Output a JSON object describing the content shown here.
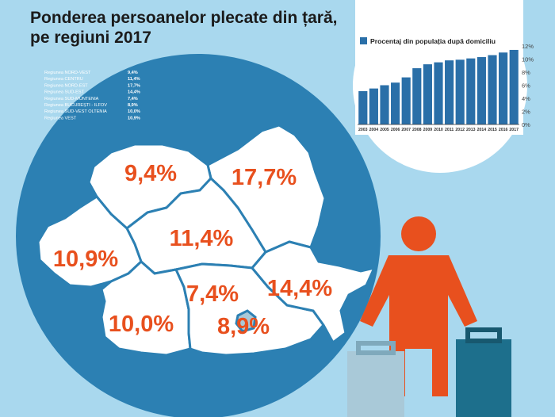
{
  "title_line1": "Ponderea persoanelor plecate din țară,",
  "title_line2": "pe regiuni 2017",
  "colors": {
    "background": "#a9d8ee",
    "circle": "#2c80b3",
    "map": "#ffffff",
    "value_text": "#e8501e",
    "bar": "#2a6fa8",
    "person": "#e8501e",
    "suitcase_light": "#a9c9d8",
    "suitcase_dark": "#1d6f8c"
  },
  "chart_data": [
    {
      "type": "table",
      "rows": [
        {
          "label": "Regiunea NORD-VEST",
          "value": "9,4%"
        },
        {
          "label": "Regiunea CENTRU",
          "value": "11,4%"
        },
        {
          "label": "Regiunea NORD-EST",
          "value": "17,7%"
        },
        {
          "label": "Regiunea SUD-EST",
          "value": "14,4%"
        },
        {
          "label": "Regiunea SUD-MUNTENIA",
          "value": "7,4%"
        },
        {
          "label": "Regiunea BUCUREȘTI - ILFOV",
          "value": "8,9%"
        },
        {
          "label": "Regiunea SUD-VEST OLTENIA",
          "value": "10,0%"
        },
        {
          "label": "Regiunea VEST",
          "value": "10,9%"
        }
      ]
    },
    {
      "type": "bar",
      "legend": "Procentaj din populația după domiciliu",
      "legend_position": "top",
      "categories": [
        "2003",
        "2004",
        "2005",
        "2006",
        "2007",
        "2008",
        "2009",
        "2010",
        "2011",
        "2012",
        "2013",
        "2014",
        "2015",
        "2016",
        "2017"
      ],
      "values": [
        5.1,
        5.5,
        6.0,
        6.4,
        7.2,
        8.6,
        9.2,
        9.5,
        9.8,
        9.9,
        10.1,
        10.3,
        10.6,
        11.0,
        11.4
      ],
      "y_ticks": [
        "0%",
        "2%",
        "4%",
        "6%",
        "8%",
        "10%",
        "12%"
      ],
      "ylim": [
        0,
        12
      ],
      "axis_side": "right",
      "grid": false
    }
  ],
  "map_labels": [
    {
      "region": "Regiunea NORD-VEST",
      "value": "9,4%"
    },
    {
      "region": "Regiunea NORD-EST",
      "value": "17,7%"
    },
    {
      "region": "Regiunea CENTRU",
      "value": "11,4%"
    },
    {
      "region": "Regiunea VEST",
      "value": "10,9%"
    },
    {
      "region": "Regiunea SUD-MUNTENIA",
      "value": "7,4%"
    },
    {
      "region": "Regiunea SUD-EST",
      "value": "14,4%"
    },
    {
      "region": "Regiunea SUD-VEST OLTENIA",
      "value": "10,0%"
    },
    {
      "region": "Regiunea BUCUREȘTI - ILFOV",
      "value": "8,9%"
    }
  ]
}
